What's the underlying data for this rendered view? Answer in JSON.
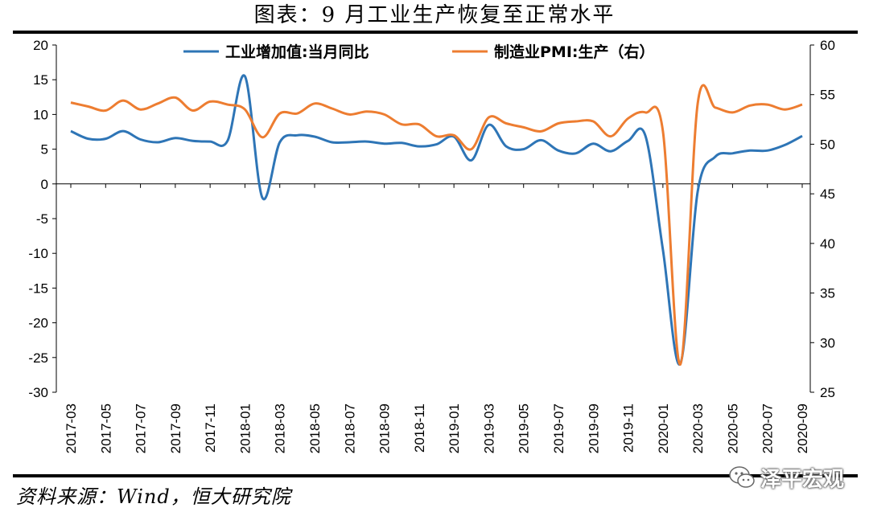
{
  "title": "图表：9 月工业生产恢复至正常水平",
  "source": "资料来源：Wind，恒大研究院",
  "watermark": {
    "text": "泽平宏观",
    "icon": "wechat-icon"
  },
  "colors": {
    "industrial": "#2E75B6",
    "pmi": "#ED7D31",
    "axis": "#000000"
  },
  "chart_data": {
    "type": "line",
    "xlim": [
      "2017-03",
      "2020-09"
    ],
    "x_tick_labels": [
      "2017-03",
      "2017-05",
      "2017-07",
      "2017-09",
      "2017-11",
      "2018-01",
      "2018-03",
      "2018-05",
      "2018-07",
      "2018-09",
      "2018-11",
      "2019-01",
      "2019-03",
      "2019-05",
      "2019-07",
      "2019-09",
      "2019-11",
      "2020-01",
      "2020-03",
      "2020-05",
      "2020-07",
      "2020-09"
    ],
    "y_left": {
      "range": [
        -30,
        20
      ],
      "ticks": [
        "20",
        "15",
        "10",
        "5",
        "0",
        "-5",
        "-10",
        "-15",
        "-20",
        "-25",
        "-30"
      ]
    },
    "y_right": {
      "range": [
        25,
        60
      ],
      "ticks": [
        "60",
        "55",
        "50",
        "45",
        "40",
        "35",
        "30",
        "25"
      ]
    },
    "grid": false,
    "legend_position": "top",
    "series": [
      {
        "name": "工业增加值:当月同比",
        "axis": "left",
        "color": "#2E75B6",
        "x": [
          "2017-03",
          "2017-04",
          "2017-05",
          "2017-06",
          "2017-07",
          "2017-08",
          "2017-09",
          "2017-10",
          "2017-11",
          "2017-12",
          "2018-01",
          "2018-02",
          "2018-03",
          "2018-04",
          "2018-05",
          "2018-06",
          "2018-07",
          "2018-08",
          "2018-09",
          "2018-10",
          "2018-11",
          "2018-12",
          "2019-01",
          "2019-02",
          "2019-03",
          "2019-04",
          "2019-05",
          "2019-06",
          "2019-07",
          "2019-08",
          "2019-09",
          "2019-10",
          "2019-11",
          "2019-12",
          "2020-01",
          "2020-02",
          "2020-03",
          "2020-04",
          "2020-05",
          "2020-06",
          "2020-07",
          "2020-08",
          "2020-09"
        ],
        "values": [
          7.6,
          6.5,
          6.5,
          7.6,
          6.4,
          6.0,
          6.6,
          6.2,
          6.1,
          6.2,
          15.5,
          -2.0,
          6.0,
          7.0,
          6.8,
          6.0,
          6.0,
          6.1,
          5.8,
          5.9,
          5.4,
          5.7,
          6.8,
          3.4,
          8.5,
          5.4,
          5.0,
          6.3,
          4.8,
          4.4,
          5.8,
          4.7,
          6.2,
          6.9,
          -9.5,
          -25.9,
          -1.1,
          3.9,
          4.4,
          4.8,
          4.8,
          5.6,
          6.9
        ]
      },
      {
        "name": "制造业PMI:生产（右）",
        "axis": "right",
        "color": "#ED7D31",
        "x": [
          "2017-03",
          "2017-04",
          "2017-05",
          "2017-06",
          "2017-07",
          "2017-08",
          "2017-09",
          "2017-10",
          "2017-11",
          "2017-12",
          "2018-01",
          "2018-02",
          "2018-03",
          "2018-04",
          "2018-05",
          "2018-06",
          "2018-07",
          "2018-08",
          "2018-09",
          "2018-10",
          "2018-11",
          "2018-12",
          "2019-01",
          "2019-02",
          "2019-03",
          "2019-04",
          "2019-05",
          "2019-06",
          "2019-07",
          "2019-08",
          "2019-09",
          "2019-10",
          "2019-11",
          "2019-12",
          "2020-01",
          "2020-02",
          "2020-03",
          "2020-04",
          "2020-05",
          "2020-06",
          "2020-07",
          "2020-08",
          "2020-09"
        ],
        "values": [
          54.2,
          53.8,
          53.4,
          54.4,
          53.5,
          54.1,
          54.7,
          53.4,
          54.3,
          54.0,
          53.5,
          50.7,
          53.1,
          53.1,
          54.1,
          53.6,
          53.0,
          53.3,
          53.0,
          52.0,
          52.0,
          50.8,
          50.9,
          49.5,
          52.7,
          52.1,
          51.7,
          51.3,
          52.1,
          52.3,
          52.3,
          50.8,
          52.6,
          53.2,
          51.3,
          27.8,
          54.1,
          53.7,
          53.2,
          53.9,
          54.0,
          53.5,
          54.0
        ]
      }
    ]
  }
}
